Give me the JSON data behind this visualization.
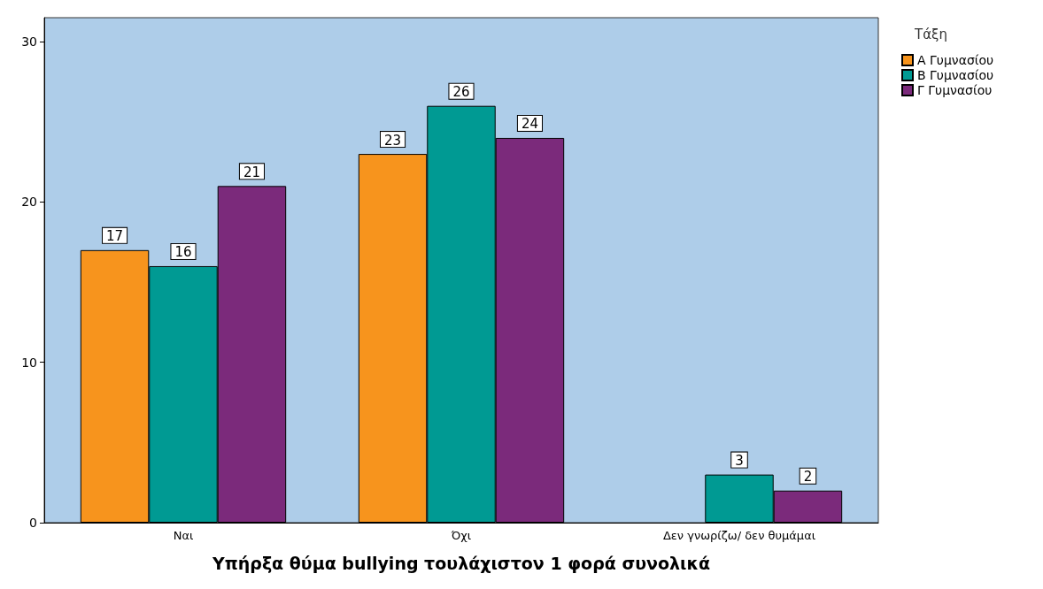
{
  "chart_data": {
    "type": "bar",
    "xlabel": "Υπήρξα θύμα bullying τουλάχιστον 1 φορά συνολικά",
    "legend_title": "Τάξη",
    "categories": [
      "Ναι",
      "Όχι",
      "Δεν γνωρίζω/ δεν θυμάμαι"
    ],
    "series": [
      {
        "name": "Α Γυμνασίου",
        "color": "#f7941d",
        "values": [
          17,
          23,
          null
        ]
      },
      {
        "name": "Β Γυμνασίου",
        "color": "#009a93",
        "values": [
          16,
          26,
          3
        ]
      },
      {
        "name": "Γ Γυμνασίου",
        "color": "#7b2a7b",
        "values": [
          21,
          24,
          2
        ]
      }
    ],
    "ylim": [
      0,
      31.5
    ],
    "yticks": [
      0,
      10,
      20,
      30
    ],
    "legend": "top right",
    "data_labels": true
  }
}
